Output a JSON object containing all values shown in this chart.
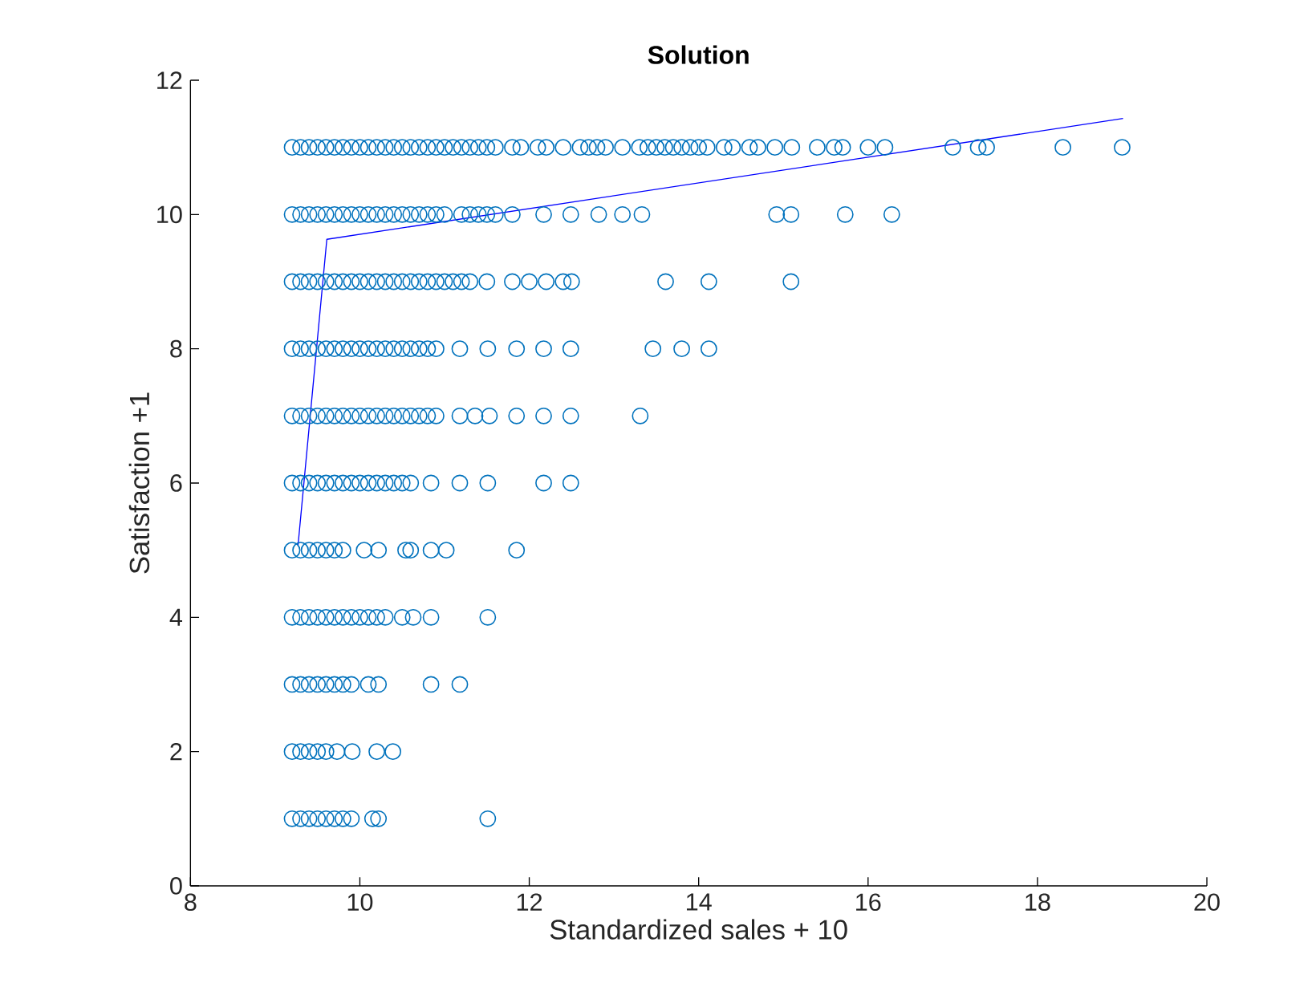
{
  "chart_data": {
    "type": "scatter",
    "title": "Solution",
    "xlabel": "Standardized sales + 10",
    "ylabel": "Satisfaction +1",
    "xlim": [
      8,
      20
    ],
    "ylim": [
      0,
      12
    ],
    "xticks": [
      8,
      10,
      12,
      14,
      16,
      18,
      20
    ],
    "yticks": [
      0,
      2,
      4,
      6,
      8,
      10,
      12
    ],
    "marker": "circle",
    "series": [
      {
        "color": "#0072bd",
        "x": [
          9.2,
          9.3,
          9.4,
          9.5,
          9.6,
          9.7,
          9.8,
          9.9,
          10.0,
          10.1,
          10.2,
          10.3,
          10.4,
          10.5,
          10.6,
          10.7,
          10.8,
          10.9,
          11.0,
          11.1,
          11.2,
          11.3,
          11.4,
          11.5,
          11.6,
          11.8,
          11.9,
          12.1,
          12.2,
          12.4,
          12.6,
          12.7,
          12.8,
          12.9,
          13.1,
          13.3,
          13.4,
          13.5,
          13.6,
          13.7,
          13.8,
          13.9,
          14.0,
          14.1,
          14.3,
          14.4,
          14.6,
          14.7,
          14.9,
          15.1,
          15.4,
          15.6,
          15.7,
          16.0,
          16.2,
          17.0,
          17.3,
          17.4,
          18.3,
          19.0
        ],
        "values": [
          11,
          11,
          11,
          11,
          11,
          11,
          11,
          11,
          11,
          11,
          11,
          11,
          11,
          11,
          11,
          11,
          11,
          11,
          11,
          11,
          11,
          11,
          11,
          11,
          11,
          11,
          11,
          11,
          11,
          11,
          11,
          11,
          11,
          11,
          11,
          11,
          11,
          11,
          11,
          11,
          11,
          11,
          11,
          11,
          11,
          11,
          11,
          11,
          11,
          11,
          11,
          11,
          11,
          11,
          11,
          11,
          11,
          11,
          11,
          11
        ]
      },
      {
        "color": "#0072bd",
        "x": [
          9.2,
          9.3,
          9.4,
          9.5,
          9.6,
          9.7,
          9.8,
          9.9,
          10.0,
          10.1,
          10.2,
          10.3,
          10.4,
          10.5,
          10.6,
          10.7,
          10.8,
          10.9,
          11.0,
          11.2,
          11.3,
          11.4,
          11.5,
          11.6,
          11.8,
          12.17,
          12.49,
          12.82,
          13.1,
          13.33,
          14.92,
          15.09,
          15.73,
          16.28
        ],
        "values": [
          10,
          10,
          10,
          10,
          10,
          10,
          10,
          10,
          10,
          10,
          10,
          10,
          10,
          10,
          10,
          10,
          10,
          10,
          10,
          10,
          10,
          10,
          10,
          10,
          10,
          10,
          10,
          10,
          10,
          10,
          10,
          10,
          10,
          10
        ]
      },
      {
        "color": "#0072bd",
        "x": [
          9.2,
          9.3,
          9.4,
          9.5,
          9.6,
          9.7,
          9.8,
          9.9,
          10.0,
          10.1,
          10.2,
          10.3,
          10.4,
          10.5,
          10.6,
          10.7,
          10.8,
          10.9,
          11.0,
          11.1,
          11.2,
          11.3,
          11.5,
          11.8,
          12.0,
          12.2,
          12.4,
          12.5,
          13.61,
          14.12,
          15.09
        ],
        "values": [
          9,
          9,
          9,
          9,
          9,
          9,
          9,
          9,
          9,
          9,
          9,
          9,
          9,
          9,
          9,
          9,
          9,
          9,
          9,
          9,
          9,
          9,
          9,
          9,
          9,
          9,
          9,
          9,
          9,
          9,
          9
        ]
      },
      {
        "color": "#0072bd",
        "x": [
          9.2,
          9.3,
          9.4,
          9.5,
          9.6,
          9.7,
          9.8,
          9.9,
          10.0,
          10.1,
          10.2,
          10.3,
          10.4,
          10.5,
          10.6,
          10.7,
          10.8,
          10.9,
          11.18,
          11.51,
          11.85,
          12.17,
          12.49,
          13.46,
          13.8,
          14.12
        ],
        "values": [
          8,
          8,
          8,
          8,
          8,
          8,
          8,
          8,
          8,
          8,
          8,
          8,
          8,
          8,
          8,
          8,
          8,
          8,
          8,
          8,
          8,
          8,
          8,
          8,
          8,
          8
        ]
      },
      {
        "color": "#0072bd",
        "x": [
          9.2,
          9.3,
          9.4,
          9.5,
          9.6,
          9.7,
          9.8,
          9.9,
          10.0,
          10.1,
          10.2,
          10.3,
          10.4,
          10.5,
          10.6,
          10.7,
          10.8,
          10.9,
          11.18,
          11.36,
          11.53,
          11.85,
          12.17,
          12.49,
          13.31
        ],
        "values": [
          7,
          7,
          7,
          7,
          7,
          7,
          7,
          7,
          7,
          7,
          7,
          7,
          7,
          7,
          7,
          7,
          7,
          7,
          7,
          7,
          7,
          7,
          7,
          7,
          7
        ]
      },
      {
        "color": "#0072bd",
        "x": [
          9.2,
          9.3,
          9.4,
          9.5,
          9.6,
          9.7,
          9.8,
          9.9,
          10.0,
          10.1,
          10.2,
          10.3,
          10.4,
          10.5,
          10.6,
          10.84,
          11.18,
          11.51,
          12.17,
          12.49
        ],
        "values": [
          6,
          6,
          6,
          6,
          6,
          6,
          6,
          6,
          6,
          6,
          6,
          6,
          6,
          6,
          6,
          6,
          6,
          6,
          6,
          6
        ]
      },
      {
        "color": "#0072bd",
        "x": [
          9.2,
          9.3,
          9.4,
          9.5,
          9.6,
          9.7,
          9.8,
          10.05,
          10.22,
          10.54,
          10.6,
          10.84,
          11.02,
          11.85
        ],
        "values": [
          5,
          5,
          5,
          5,
          5,
          5,
          5,
          5,
          5,
          5,
          5,
          5,
          5,
          5
        ]
      },
      {
        "color": "#0072bd",
        "x": [
          9.2,
          9.3,
          9.4,
          9.5,
          9.6,
          9.7,
          9.8,
          9.9,
          10.0,
          10.1,
          10.2,
          10.3,
          10.5,
          10.63,
          10.84,
          11.51
        ],
        "values": [
          4,
          4,
          4,
          4,
          4,
          4,
          4,
          4,
          4,
          4,
          4,
          4,
          4,
          4,
          4,
          4
        ]
      },
      {
        "color": "#0072bd",
        "x": [
          9.2,
          9.3,
          9.4,
          9.5,
          9.6,
          9.7,
          9.8,
          9.9,
          10.1,
          10.22,
          10.84,
          11.18
        ],
        "values": [
          3,
          3,
          3,
          3,
          3,
          3,
          3,
          3,
          3,
          3,
          3,
          3
        ]
      },
      {
        "color": "#0072bd",
        "x": [
          9.2,
          9.3,
          9.4,
          9.5,
          9.6,
          9.73,
          9.91,
          10.2,
          10.39
        ],
        "values": [
          2,
          2,
          2,
          2,
          2,
          2,
          2,
          2,
          2
        ]
      },
      {
        "color": "#0072bd",
        "x": [
          9.2,
          9.3,
          9.4,
          9.5,
          9.6,
          9.7,
          9.8,
          9.9,
          10.15,
          10.22,
          11.51
        ],
        "values": [
          1,
          1,
          1,
          1,
          1,
          1,
          1,
          1,
          1,
          1,
          1
        ]
      },
      {
        "type": "line",
        "color": "#0000ff",
        "marker": "none",
        "line_style": "solid",
        "x": [
          9.27,
          9.61,
          19.01
        ],
        "values": [
          5.07,
          9.63,
          11.43
        ]
      }
    ]
  }
}
